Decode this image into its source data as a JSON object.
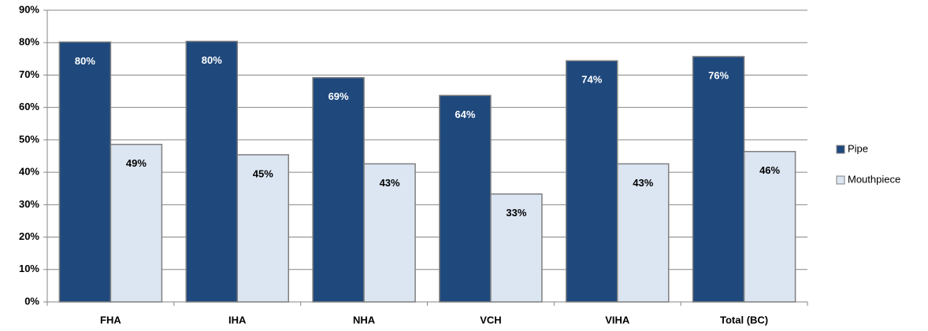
{
  "chart_data": {
    "type": "bar",
    "categories": [
      "FHA",
      "IHA",
      "NHA",
      "VCH",
      "VIHA",
      "Total (BC)"
    ],
    "series": [
      {
        "name": "Pipe",
        "color": "#1f497d",
        "values": [
          80.2,
          80.4,
          69.2,
          63.7,
          74.4,
          75.7
        ],
        "value_labels": [
          "80%",
          "80%",
          "69%",
          "64%",
          "74%",
          "76%"
        ]
      },
      {
        "name": "Mouthpiece",
        "color": "#dce6f2",
        "values": [
          48.6,
          45.4,
          42.6,
          33.3,
          42.6,
          46.4
        ],
        "value_labels": [
          "49%",
          "45%",
          "43%",
          "33%",
          "43%",
          "46%"
        ]
      }
    ],
    "ylim": [
      0,
      90
    ],
    "yticks": [
      {
        "value": 0,
        "label": "0%"
      },
      {
        "value": 10,
        "label": "10%"
      },
      {
        "value": 20,
        "label": "20%"
      },
      {
        "value": 30,
        "label": "30%"
      },
      {
        "value": 40,
        "label": "40%"
      },
      {
        "value": 50,
        "label": "50%"
      },
      {
        "value": 60,
        "label": "60%"
      },
      {
        "value": 70,
        "label": "70%"
      },
      {
        "value": 80,
        "label": "80%"
      },
      {
        "value": 90,
        "label": "90%"
      }
    ],
    "grid": true,
    "legend": "right"
  }
}
